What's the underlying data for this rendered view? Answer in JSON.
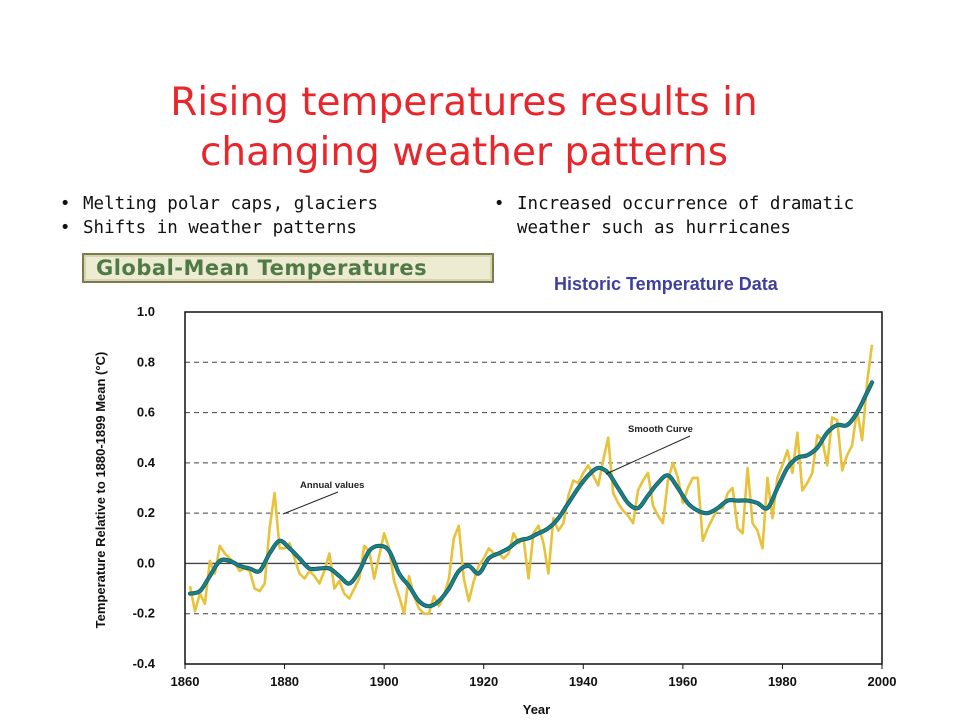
{
  "slide": {
    "title_line1": "Rising temperatures results in",
    "title_line2": "changing weather patterns",
    "bullets_left": [
      "Melting polar caps, glaciers",
      "Shifts in weather patterns"
    ],
    "bullets_right": [
      "Increased occurrence of dramatic weather such as hurricanes"
    ],
    "legend_label": "Global-Mean Temperatures",
    "historic_label": "Historic Temperature Data"
  },
  "colors": {
    "title": "#e8262b",
    "annual": "#e8c23a",
    "smooth": "#1f7f86",
    "grid": "#444444",
    "historic_label": "#3f3fa0"
  },
  "chart_data": {
    "type": "line",
    "title": "Global-Mean Temperatures",
    "xlabel": "Year",
    "ylabel": "Temperature Relative to 1880-1899 Mean (°C)",
    "xlim": [
      1860,
      2000
    ],
    "ylim": [
      -0.4,
      1.0
    ],
    "x_ticks": [
      "1860",
      "1880",
      "1900",
      "1920",
      "1940",
      "1960",
      "1980",
      "2000"
    ],
    "y_ticks": [
      "1.0",
      "0.8",
      "0.6",
      "0.4",
      "0.2",
      "0.0",
      "-0.2",
      "-0.4"
    ],
    "grid": "dashed horizontal",
    "annotations": [
      "Annual values",
      "Smooth Curve"
    ],
    "series": [
      {
        "name": "Annual values",
        "x": [
          1861,
          1862,
          1863,
          1864,
          1865,
          1866,
          1867,
          1868,
          1869,
          1870,
          1871,
          1872,
          1873,
          1874,
          1875,
          1876,
          1877,
          1878,
          1879,
          1880,
          1881,
          1882,
          1883,
          1884,
          1885,
          1886,
          1887,
          1888,
          1889,
          1890,
          1891,
          1892,
          1893,
          1894,
          1895,
          1896,
          1897,
          1898,
          1899,
          1900,
          1901,
          1902,
          1903,
          1904,
          1905,
          1906,
          1907,
          1908,
          1909,
          1910,
          1911,
          1912,
          1913,
          1914,
          1915,
          1916,
          1917,
          1918,
          1919,
          1920,
          1921,
          1922,
          1923,
          1924,
          1925,
          1926,
          1927,
          1928,
          1929,
          1930,
          1931,
          1932,
          1933,
          1934,
          1935,
          1936,
          1937,
          1938,
          1939,
          1940,
          1941,
          1942,
          1943,
          1944,
          1945,
          1946,
          1947,
          1948,
          1949,
          1950,
          1951,
          1952,
          1953,
          1954,
          1955,
          1956,
          1957,
          1958,
          1959,
          1960,
          1961,
          1962,
          1963,
          1964,
          1965,
          1966,
          1967,
          1968,
          1969,
          1970,
          1971,
          1972,
          1973,
          1974,
          1975,
          1976,
          1977,
          1978,
          1979,
          1980,
          1981,
          1982,
          1983,
          1984,
          1985,
          1986,
          1987,
          1988,
          1989,
          1990,
          1991,
          1992,
          1993,
          1994,
          1995,
          1996,
          1997,
          1998
        ],
        "values": [
          -0.09,
          -0.19,
          -0.12,
          -0.16,
          0.01,
          -0.04,
          0.07,
          0.04,
          0.02,
          0.0,
          -0.03,
          -0.02,
          -0.03,
          -0.1,
          -0.11,
          -0.08,
          0.14,
          0.28,
          0.06,
          0.06,
          0.08,
          0.02,
          -0.04,
          -0.06,
          -0.03,
          -0.05,
          -0.08,
          -0.03,
          0.04,
          -0.1,
          -0.07,
          -0.12,
          -0.14,
          -0.1,
          -0.06,
          0.07,
          0.05,
          -0.06,
          0.03,
          0.12,
          0.06,
          -0.07,
          -0.13,
          -0.2,
          -0.05,
          -0.13,
          -0.18,
          -0.2,
          -0.2,
          -0.13,
          -0.17,
          -0.13,
          -0.06,
          0.1,
          0.15,
          -0.06,
          -0.15,
          -0.07,
          -0.01,
          0.02,
          0.06,
          0.04,
          0.04,
          0.02,
          0.04,
          0.12,
          0.08,
          0.1,
          -0.06,
          0.12,
          0.15,
          0.08,
          -0.04,
          0.18,
          0.13,
          0.16,
          0.27,
          0.33,
          0.32,
          0.36,
          0.39,
          0.35,
          0.31,
          0.41,
          0.5,
          0.28,
          0.24,
          0.21,
          0.19,
          0.16,
          0.29,
          0.33,
          0.36,
          0.23,
          0.19,
          0.16,
          0.33,
          0.4,
          0.34,
          0.24,
          0.3,
          0.34,
          0.34,
          0.09,
          0.14,
          0.18,
          0.22,
          0.22,
          0.28,
          0.3,
          0.14,
          0.12,
          0.38,
          0.16,
          0.13,
          0.06,
          0.34,
          0.18,
          0.34,
          0.39,
          0.45,
          0.36,
          0.52,
          0.29,
          0.32,
          0.36,
          0.51,
          0.49,
          0.39,
          0.58,
          0.57,
          0.37,
          0.43,
          0.47,
          0.61,
          0.49,
          0.72,
          0.87
        ]
      },
      {
        "name": "Smooth Curve",
        "x": [
          1861,
          1863,
          1865,
          1867,
          1869,
          1871,
          1873,
          1875,
          1877,
          1879,
          1881,
          1883,
          1885,
          1887,
          1889,
          1891,
          1893,
          1895,
          1897,
          1899,
          1901,
          1903,
          1905,
          1907,
          1909,
          1911,
          1913,
          1915,
          1917,
          1919,
          1921,
          1923,
          1925,
          1927,
          1929,
          1931,
          1933,
          1935,
          1937,
          1939,
          1941,
          1943,
          1945,
          1947,
          1949,
          1951,
          1953,
          1955,
          1957,
          1959,
          1961,
          1963,
          1965,
          1967,
          1969,
          1971,
          1973,
          1975,
          1977,
          1979,
          1981,
          1983,
          1985,
          1987,
          1989,
          1991,
          1993,
          1995,
          1997,
          1998
        ],
        "values": [
          -0.12,
          -0.11,
          -0.05,
          0.01,
          0.01,
          -0.01,
          -0.02,
          -0.03,
          0.04,
          0.09,
          0.06,
          0.02,
          -0.02,
          -0.02,
          -0.02,
          -0.05,
          -0.08,
          -0.03,
          0.05,
          0.07,
          0.05,
          -0.04,
          -0.09,
          -0.15,
          -0.17,
          -0.15,
          -0.1,
          -0.03,
          -0.01,
          -0.04,
          0.02,
          0.04,
          0.06,
          0.09,
          0.1,
          0.12,
          0.14,
          0.18,
          0.24,
          0.3,
          0.35,
          0.38,
          0.36,
          0.3,
          0.24,
          0.22,
          0.27,
          0.32,
          0.35,
          0.3,
          0.24,
          0.21,
          0.2,
          0.22,
          0.25,
          0.25,
          0.25,
          0.24,
          0.22,
          0.3,
          0.38,
          0.42,
          0.43,
          0.46,
          0.52,
          0.55,
          0.55,
          0.6,
          0.68,
          0.72
        ]
      }
    ]
  }
}
